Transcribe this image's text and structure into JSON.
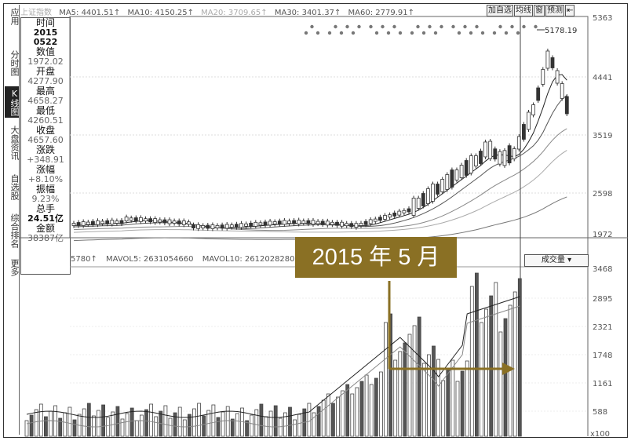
{
  "window": {
    "title": "上证指数"
  },
  "left_tabs": [
    {
      "label": "应用",
      "active": false
    },
    {
      "label": "分时图",
      "active": false
    },
    {
      "label": "K线图",
      "active": true
    },
    {
      "label": "大盘资讯",
      "active": false
    },
    {
      "label": "自选股",
      "active": false
    },
    {
      "label": "综合排名",
      "active": false
    },
    {
      "label": "更多",
      "active": false
    }
  ],
  "info_panel": {
    "time_label": "时间",
    "date_year": "2015",
    "date_md": "0522",
    "value_label": "数值",
    "value": "1972.02",
    "open_label": "开盘",
    "open": "4277.90",
    "high_label": "最高",
    "high": "4658.27",
    "low_label": "最低",
    "low": "4260.51",
    "close_label": "收盘",
    "close": "4657.60",
    "change_label": "涨跌",
    "change": "+348.91",
    "pct_label": "涨幅",
    "pct": "+8.10%",
    "amp_label": "振幅",
    "amp": "9.23%",
    "vol_label": "总手",
    "vol": "24.51亿",
    "amt_label": "金额",
    "amt": "38387亿"
  },
  "ma_bar": {
    "ma5": "MA5: 4401.51↑",
    "ma10": "MA10: 4150.25↑",
    "ma20": "MA20: 3709.65↑",
    "ma30": "MA30: 3401.37↑",
    "ma60": "MA60: 2779.91↑"
  },
  "top_buttons": [
    "加自选",
    "均线",
    "窗",
    "预测"
  ],
  "price_axis": [
    "5363",
    "4441",
    "3519",
    "2598",
    "1972"
  ],
  "volume_axis": [
    "3468",
    "2895",
    "2321",
    "1748",
    "1161",
    "588",
    "x100"
  ],
  "price_annotation": "5178.19",
  "volume_bar": {
    "vol": "5780↑",
    "mavol5": "MAVOL5: 2631054660",
    "mavol10": "MAVOL10: 2612028280"
  },
  "volume_selector": "成交量",
  "callout": "2015 年 5 月",
  "chart_data": {
    "type": "candlestick",
    "y_range": [
      1800,
      5363
    ],
    "volume_range": [
      0,
      3468
    ],
    "volume_unit": "x100",
    "price_ticks": [
      5363,
      4441,
      3519,
      2598,
      1972
    ],
    "volume_ticks": [
      3468,
      2895,
      2321,
      1748,
      1161,
      588
    ],
    "highlight_date": "2015-05-22",
    "peak_value": 5178.19
  }
}
